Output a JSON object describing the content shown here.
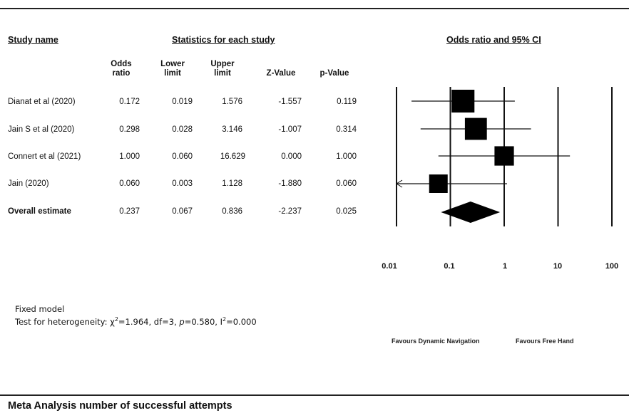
{
  "chart_data": {
    "type": "forest",
    "headers": {
      "study_name": "Study name",
      "statistics": "Statistics for each study",
      "plot": "Odds ratio and 95% CI"
    },
    "columns": [
      {
        "key": "or",
        "line1": "Odds",
        "line2": "ratio"
      },
      {
        "key": "lower",
        "line1": "Lower",
        "line2": "limit"
      },
      {
        "key": "upper",
        "line1": "Upper",
        "line2": "limit"
      },
      {
        "key": "z",
        "line1": "",
        "line2": "Z-Value"
      },
      {
        "key": "p",
        "line1": "",
        "line2": "p-Value"
      }
    ],
    "studies": [
      {
        "name": "Dianat et al (2020)",
        "or": "0.172",
        "lower": "0.019",
        "upper": "1.576",
        "z": "-1.557",
        "p": "0.119",
        "or_val": 0.172,
        "lower_val": 0.019,
        "upper_val": 1.576,
        "weight": 0.3
      },
      {
        "name": "Jain S et al (2020)",
        "or": "0.298",
        "lower": "0.028",
        "upper": "3.146",
        "z": "-1.007",
        "p": "0.314",
        "or_val": 0.298,
        "lower_val": 0.028,
        "upper_val": 3.146,
        "weight": 0.28
      },
      {
        "name": "Connert et al (2021)",
        "or": "1.000",
        "lower": "0.060",
        "upper": "16.629",
        "z": "0.000",
        "p": "1.000",
        "or_val": 1.0,
        "lower_val": 0.06,
        "upper_val": 16.629,
        "weight": 0.22
      },
      {
        "name": "Jain (2020)",
        "or": "0.060",
        "lower": "0.003",
        "upper": "1.128",
        "z": "-1.880",
        "p": "0.060",
        "or_val": 0.06,
        "lower_val": 0.003,
        "upper_val": 1.128,
        "weight": 0.2
      }
    ],
    "overall": {
      "name": "Overall estimate",
      "or": "0.237",
      "lower": "0.067",
      "upper": "0.836",
      "z": "-2.237",
      "p": "0.025",
      "or_val": 0.237,
      "lower_val": 0.067,
      "upper_val": 0.836
    },
    "x_scale": "log",
    "xlim": [
      0.01,
      100
    ],
    "x_ticks": [
      {
        "value": 0.01,
        "label": "0.01"
      },
      {
        "value": 0.1,
        "label": "0.1"
      },
      {
        "value": 1,
        "label": "1"
      },
      {
        "value": 10,
        "label": "10"
      },
      {
        "value": 100,
        "label": "100"
      }
    ],
    "favours_left": "Favours Dynamic Navigation",
    "favours_right": "Favours Free Hand"
  },
  "footnote": {
    "model": "Fixed model",
    "heterogeneity_prefix": "Test for heterogeneity:",
    "chi_symbol": "χ",
    "chi_exp": "2",
    "chi_value": "=1.964,",
    "df": "df=3,",
    "p_label": "p",
    "p_value": "=0.580,",
    "i_symbol": "I",
    "i_exp": "2",
    "i_value": "=0.000"
  },
  "bottom_title": "Meta Analysis number of successful attempts"
}
